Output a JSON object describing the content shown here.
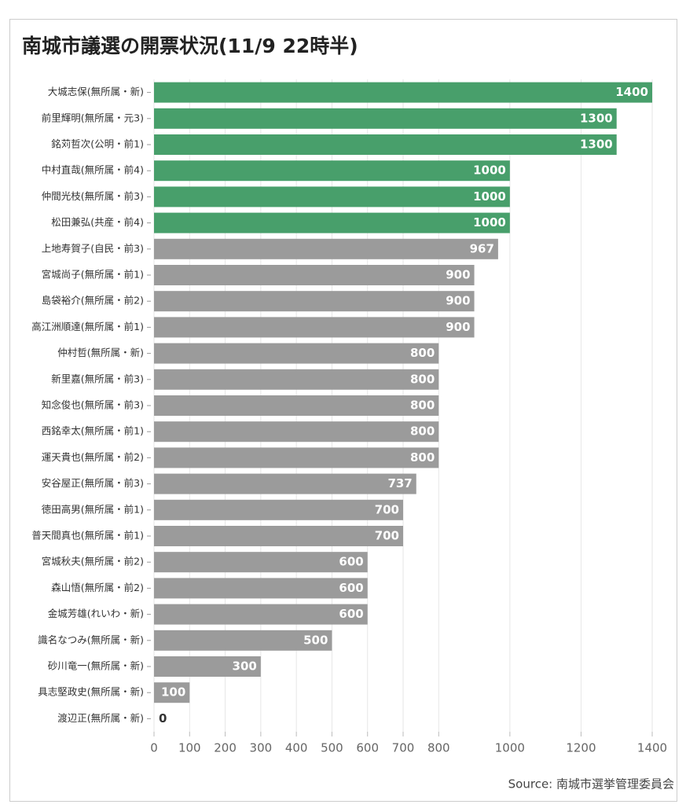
{
  "chart_data": {
    "type": "hbar",
    "title": "南城市議選の開票状況(11/9 22時半)",
    "source": "Source: 南城市選挙管理委員会",
    "categories": [
      "大城志保(無所属・新)",
      "前里輝明(無所属・元3)",
      "銘苅哲次(公明・前1)",
      "中村直哉(無所属・前4)",
      "仲間光枝(無所属・前3)",
      "松田兼弘(共産・前4)",
      "上地寿賀子(自民・前3)",
      "宮城尚子(無所属・前1)",
      "島袋裕介(無所属・前2)",
      "高江洲順達(無所属・前1)",
      "仲村哲(無所属・新)",
      "新里嘉(無所属・前3)",
      "知念俊也(無所属・前3)",
      "西銘幸太(無所属・前1)",
      "運天貴也(無所属・前2)",
      "安谷屋正(無所属・前3)",
      "徳田高男(無所属・前1)",
      "普天間真也(無所属・前1)",
      "宮城秋夫(無所属・前2)",
      "森山悟(無所属・前2)",
      "金城芳雄(れいわ・新)",
      "識名なつみ(無所属・新)",
      "砂川竜一(無所属・新)",
      "具志堅政史(無所属・新)",
      "渡辺正(無所属・新)"
    ],
    "values": [
      1400,
      1300,
      1300,
      1000,
      1000,
      1000,
      967,
      900,
      900,
      900,
      800,
      800,
      800,
      800,
      800,
      737,
      700,
      700,
      600,
      600,
      600,
      500,
      300,
      100,
      0
    ],
    "colors": [
      "#489f6b",
      "#489f6b",
      "#489f6b",
      "#489f6b",
      "#489f6b",
      "#489f6b",
      "#9b9b9b",
      "#9b9b9b",
      "#9b9b9b",
      "#9b9b9b",
      "#9b9b9b",
      "#9b9b9b",
      "#9b9b9b",
      "#9b9b9b",
      "#9b9b9b",
      "#9b9b9b",
      "#9b9b9b",
      "#9b9b9b",
      "#9b9b9b",
      "#9b9b9b",
      "#9b9b9b",
      "#9b9b9b",
      "#9b9b9b",
      "#9b9b9b",
      "#9b9b9b"
    ],
    "xlim": [
      0,
      1400
    ],
    "xticks": [
      0,
      100,
      200,
      300,
      400,
      500,
      600,
      700,
      800,
      1000,
      1200,
      1400
    ],
    "grid": true
  }
}
